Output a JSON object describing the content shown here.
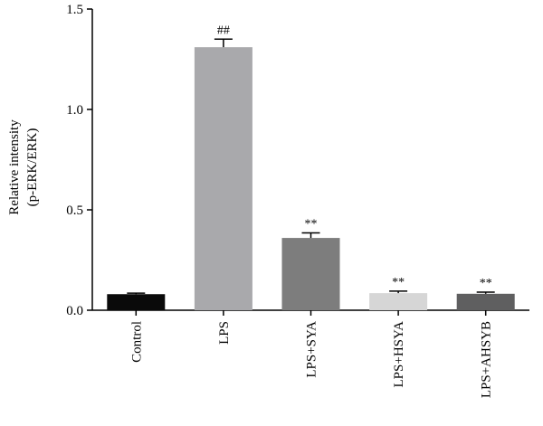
{
  "chart_data": {
    "type": "bar",
    "ylabel_line1": "Relative intensity",
    "ylabel_line2": "(p-ERK/ERK)",
    "ylim": [
      0,
      1.5
    ],
    "yticks": [
      "0.0",
      "0.5",
      "1.0",
      "1.5"
    ],
    "ytick_values": [
      0,
      0.5,
      1.0,
      1.5
    ],
    "categories": [
      "Control",
      "LPS",
      "LPS+SYA",
      "LPS+HSYA",
      "LPS+AHSYB"
    ],
    "values": [
      0.08,
      1.31,
      0.36,
      0.085,
      0.082
    ],
    "errors": [
      0.005,
      0.04,
      0.025,
      0.01,
      0.008
    ],
    "annotations": [
      "",
      "##",
      "**",
      "**",
      "**"
    ],
    "colors": [
      "#0a0a0a",
      "#a9a9ac",
      "#7d7d7d",
      "#d6d6d6",
      "#5f5f60"
    ],
    "grid": false,
    "legend": "none"
  }
}
